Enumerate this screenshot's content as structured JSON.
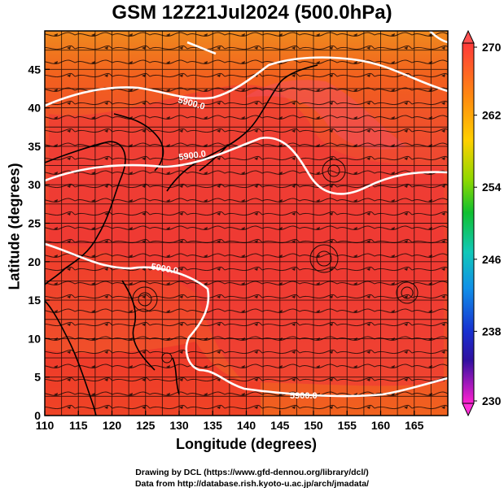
{
  "title": "GSM 12Z21Jul2024 (500.0hPa)",
  "xlabel": "Longitude (degrees)",
  "ylabel": "Latitude  (degrees)",
  "credits": [
    "Drawing by DCL (https://www.gfd-dennou.org/library/dcl/)",
    "Data from http://database.rish.kyoto-u.ac.jp/arch/jmadata/"
  ],
  "map": {
    "lon_range": [
      110,
      170
    ],
    "lat_range": [
      0,
      50
    ],
    "x_ticks": [
      "110",
      "115",
      "120",
      "125",
      "130",
      "135",
      "140",
      "145",
      "150",
      "155",
      "160",
      "165"
    ],
    "y_ticks": [
      "0",
      "5",
      "10",
      "15",
      "20",
      "25",
      "30",
      "35",
      "40",
      "45"
    ],
    "contour_label": "5900.0",
    "contour_color": "#ffffff"
  },
  "colorbar": {
    "ticks": [
      "270",
      "262",
      "254",
      "246",
      "238",
      "230"
    ],
    "min": 230,
    "max": 270
  }
}
